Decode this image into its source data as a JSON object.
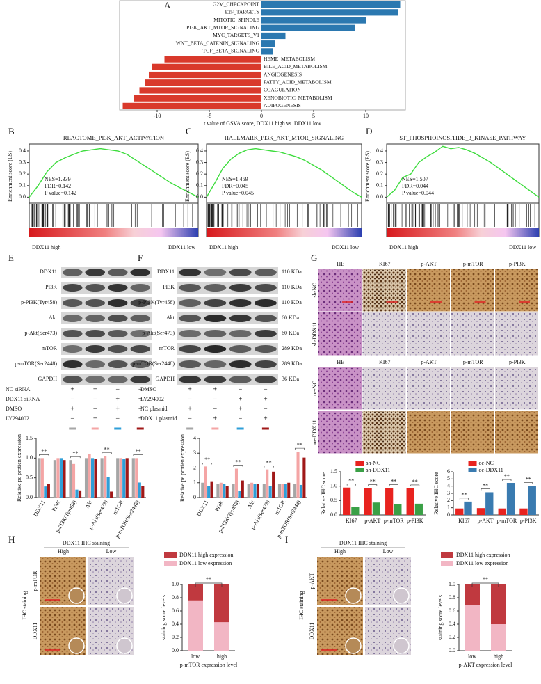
{
  "A": {
    "label": "A",
    "type": "bar",
    "orientation": "horizontal",
    "categories": [
      "G2M_CHECKPOINT",
      "E2F_TARGETS",
      "MITOTIC_SPINDLE",
      "PI3K_AKT_MTOR_SIGNALING",
      "MYC_TARGETS_V1",
      "WNT_BETA_CATENIN_SIGNALING",
      "TGF_BETA_SIGNALING",
      "HEME_METABOLISM",
      "BILE_ACID_METABOLISM",
      "ANGIOGENESIS",
      "FATTY_ACID_METABOLISM",
      "COAGULATION",
      "XENOBIOTIC_METABOLISM",
      "ADIPOGENESIS"
    ],
    "values": [
      13.3,
      13.1,
      10.0,
      9.0,
      2.3,
      1.3,
      1.1,
      -9.3,
      -10.5,
      -10.8,
      -11.2,
      -11.7,
      -12.2,
      -13.3
    ],
    "colors": {
      "positive": "#2b78b0",
      "negative": "#d9392b"
    },
    "xlabel": "t value of GSVA score, DDX11 high vs. DDX11 low",
    "xlim": [
      -13.6,
      13.8
    ],
    "xticks": [
      -10,
      -5,
      0,
      5,
      10
    ]
  },
  "B": {
    "label": "B",
    "type": "line",
    "title": "REACTOME_PI3K_AKT_ACTIVATION",
    "ylabel": "Enrichment score (ES)",
    "stats": [
      "NES=1.339",
      "FDR=0.142",
      "P value=0.142"
    ],
    "color": "#3ddc3d",
    "values": [
      0,
      0.1,
      0.22,
      0.3,
      0.34,
      0.37,
      0.4,
      0.41,
      0.42,
      0.41,
      0.4,
      0.37,
      0.32,
      0.27,
      0.22,
      0.17,
      0.12,
      0.08,
      0.04,
      0
    ],
    "ylim": [
      -0.04,
      0.46
    ],
    "yticks": [
      {
        "value": 0,
        "label": "0.0"
      },
      0.1,
      0.2,
      0.3,
      0.4
    ],
    "high_label": "DDX11 high",
    "low_label": "DDX11 low"
  },
  "C": {
    "label": "C",
    "type": "line",
    "title": "HALLMARK_PI3K_AKT_MTOR_SIGNALING",
    "ylabel": "Enrichment score (ES)",
    "stats": [
      "NES=1.459",
      "FDR=0.045",
      "P value=0.045"
    ],
    "color": "#3ddc3d",
    "values": [
      0,
      0.12,
      0.25,
      0.33,
      0.38,
      0.41,
      0.42,
      0.41,
      0.4,
      0.39,
      0.37,
      0.35,
      0.32,
      0.28,
      0.24,
      0.19,
      0.14,
      0.09,
      0.04,
      0
    ],
    "ylim": [
      -0.04,
      0.46
    ],
    "yticks": [
      {
        "value": 0,
        "label": "0.0"
      },
      0.1,
      0.2,
      0.3,
      0.4
    ],
    "high_label": "DDX11 high",
    "low_label": "DDX11 low"
  },
  "D": {
    "label": "D",
    "type": "line",
    "title": "ST_PHOSPHOINOSITIDE_3_KINASE_PATHWAY",
    "ylabel": "Enrichment score (ES)",
    "stats": [
      "NES=1.507",
      "FDR=0.044",
      "P value=0.044"
    ],
    "color": "#3ddc3d",
    "values": [
      0,
      0.06,
      0.17,
      0.2,
      0.3,
      0.35,
      0.39,
      0.44,
      0.42,
      0.43,
      0.41,
      0.38,
      0.34,
      0.3,
      0.25,
      0.2,
      0.15,
      0.1,
      0.05,
      0
    ],
    "ylim": [
      -0.04,
      0.46
    ],
    "yticks": [
      {
        "value": 0,
        "label": "0.0"
      },
      0.1,
      0.2,
      0.3,
      0.4
    ],
    "high_label": "DDX11 high",
    "low_label": "DDX11 low"
  },
  "E": {
    "label": "E",
    "blot": {
      "proteins": [
        "DDX11",
        "PI3K",
        "p-PI3K(Tyr458)",
        "Akt",
        "p-Akt(Ser473)",
        "mTOR",
        "p-mTOR(Ser2448)",
        "GAPDH"
      ],
      "treatments": [
        {
          "name": "NC siRNA",
          "signs": [
            "+",
            "+",
            "−",
            "−"
          ]
        },
        {
          "name": "DDX11 siRNA",
          "signs": [
            "−",
            "−",
            "+",
            "+"
          ]
        },
        {
          "name": "DMSO",
          "signs": [
            "+",
            "−",
            "+",
            "−"
          ]
        },
        {
          "name": "LY294002",
          "signs": [
            "−",
            "+",
            "−",
            "+"
          ]
        }
      ]
    },
    "chart": {
      "type": "bar",
      "ylabel": "Relative pe protien expression",
      "categories": [
        "DDX11",
        "PI3K",
        "p-PI3K(Tyr458)",
        "Akt",
        "p-Akt(Ser473)",
        "mTOR",
        "p-mTOR(Ser2448)"
      ],
      "series": [
        {
          "color": "#a6a6a6",
          "values": [
            1.0,
            0.95,
            0.95,
            1.0,
            1.0,
            1.0,
            1.0
          ]
        },
        {
          "color": "#f4a5a5",
          "values": [
            1.0,
            1.0,
            0.85,
            1.1,
            1.05,
            1.0,
            1.0
          ]
        },
        {
          "color": "#2f9fd8",
          "values": [
            0.28,
            1.0,
            0.2,
            1.0,
            0.52,
            0.97,
            0.38
          ]
        },
        {
          "color": "#a01818",
          "values": [
            0.35,
            0.95,
            0.18,
            0.98,
            0.15,
            1.0,
            0.3
          ]
        }
      ],
      "ylim": [
        0,
        1.5
      ],
      "yticks": [
        {
          "value": 0,
          "label": "0.0"
        },
        0.5,
        {
          "value": 1,
          "label": "1.0"
        },
        1.5
      ],
      "annotations": [
        {
          "text": "**",
          "x": "DDX11"
        },
        {
          "text": "**",
          "x": "p-PI3K(Tyr458)"
        },
        {
          "text": "**",
          "x": "p-Akt(Ser473)"
        },
        {
          "text": "**",
          "x": "p-mTOR(Ser2448)"
        }
      ]
    }
  },
  "F": {
    "label": "F",
    "blot": {
      "proteins": [
        "DDX11",
        "PI3K",
        "p-PI3K(Tyr458)",
        "Akt",
        "p-Akt(Ser473)",
        "mTOR",
        "p-mTOR(Ser2448)",
        "GAPDH"
      ],
      "sizes": [
        "110 KDa",
        "110 KDa",
        "110 KDa",
        "60 KDa",
        "60 KDa",
        "289 KDa",
        "289 KDa",
        "36 KDa"
      ],
      "treatments": [
        {
          "name": "DMSO",
          "signs": [
            "+",
            "+",
            "−",
            "−"
          ]
        },
        {
          "name": "LY294002",
          "signs": [
            "−",
            "−",
            "+",
            "+"
          ]
        },
        {
          "name": "NC plasmid",
          "signs": [
            "+",
            "−",
            "+",
            "−"
          ]
        },
        {
          "name": "DDX11 plasmid",
          "signs": [
            "−",
            "+",
            "−",
            "+"
          ]
        }
      ]
    },
    "chart": {
      "type": "bar",
      "ylabel": "Relative pe protien expression",
      "categories": [
        "DDX11",
        "PI3K",
        "p-PI3K(Tyr458)",
        "Akt",
        "p-Akt(Ser473)",
        "mTOR",
        "p-mTOR(Ser2448)"
      ],
      "series": [
        {
          "color": "#a6a6a6",
          "values": [
            1.0,
            0.9,
            0.9,
            0.9,
            0.9,
            0.9,
            0.9
          ]
        },
        {
          "color": "#f4a5a5",
          "values": [
            2.1,
            1.0,
            1.95,
            1.0,
            1.9,
            0.9,
            3.1
          ]
        },
        {
          "color": "#2f9fd8",
          "values": [
            0.8,
            0.9,
            0.45,
            0.9,
            0.8,
            0.9,
            0.85
          ]
        },
        {
          "color": "#a01818",
          "values": [
            1.1,
            0.8,
            1.15,
            0.9,
            1.75,
            1.0,
            2.7
          ]
        }
      ],
      "ylim": [
        0,
        4
      ],
      "yticks": [
        0,
        1,
        2,
        3,
        4
      ],
      "annotations": [
        {
          "text": "**",
          "x": "DDX11"
        },
        {
          "text": "**",
          "x": "p-PI3K(Tyr458)"
        },
        {
          "text": "**",
          "x": "p-Akt(Ser473)"
        },
        {
          "text": "**",
          "x": "p-mTOR(Ser2448)"
        }
      ]
    }
  },
  "G": {
    "label": "G",
    "ihc": {
      "columns": [
        "HE",
        "KI67",
        "p-AKT",
        "p-mTOR",
        "p-PI3K"
      ],
      "groups": [
        {
          "rows": [
            "sh-NC",
            "sh-DDX11"
          ]
        },
        {
          "rows": [
            "oe-NC",
            "oe-DDX11"
          ]
        }
      ]
    },
    "charts": [
      {
        "type": "bar",
        "ylabel": "Relative IHC score",
        "categories": [
          "KI67",
          "p-AKT",
          "p-mTOR",
          "p-PI3K"
        ],
        "series": [
          {
            "name": "sh-NC",
            "color": "#e8231f",
            "values": [
              0.95,
              0.93,
              0.93,
              0.92
            ]
          },
          {
            "name": "sh-DDX11",
            "color": "#3aa046",
            "values": [
              0.28,
              0.43,
              0.38,
              0.39
            ]
          }
        ],
        "ylim": [
          0,
          1.5
        ],
        "yticks": [
          {
            "value": 0,
            "label": "0.0"
          },
          0.5,
          {
            "value": 1,
            "label": "1.0"
          },
          1.5
        ],
        "annotations": [
          {
            "text": "**",
            "x": "KI67"
          },
          {
            "text": "**",
            "x": "p-AKT"
          },
          {
            "text": "**",
            "x": "p-mTOR"
          },
          {
            "text": "**",
            "x": "p-PI3K"
          }
        ]
      },
      {
        "type": "bar",
        "ylabel": "Relative IHC score",
        "categories": [
          "KI67",
          "p-AKT",
          "p-mTOR",
          "p-PI3K"
        ],
        "series": [
          {
            "name": "oe-NC",
            "color": "#e8231f",
            "values": [
              0.9,
              0.95,
              0.9,
              0.9
            ]
          },
          {
            "name": "oe-DDX11",
            "color": "#3a7bb0",
            "values": [
              1.85,
              3.15,
              4.45,
              4.0
            ]
          }
        ],
        "ylim": [
          0,
          6
        ],
        "yticks": [
          0,
          1,
          2,
          3,
          4,
          5,
          6
        ],
        "annotations": [
          {
            "text": "**",
            "x": "KI67"
          },
          {
            "text": "**",
            "x": "p-AKT"
          },
          {
            "text": "**",
            "x": "p-mTOR"
          },
          {
            "text": "**",
            "x": "p-PI3K"
          }
        ]
      }
    ]
  },
  "H": {
    "label": "H",
    "ihc": {
      "title": "DDX11 IHC staining",
      "columns": [
        "High",
        "Low"
      ],
      "rows": [
        "p-mTOR",
        "DDX11"
      ],
      "side_label": "IHC staining"
    },
    "chart": {
      "type": "stacked_bar",
      "categories": [
        "low",
        "high"
      ],
      "series": [
        {
          "name": "DDX11 low expression",
          "color": "#f2b6c4",
          "values": [
            0.76,
            0.43
          ]
        },
        {
          "name": "DDX11 high expression",
          "color": "#c0393f",
          "values": [
            0.24,
            0.57
          ]
        }
      ],
      "ylabel": "staining score levels",
      "xlabel": "p-mTOR expression level",
      "ylim": [
        0,
        1
      ],
      "yticks": [
        {
          "value": 0,
          "label": "0.0"
        },
        0.2,
        0.4,
        0.6,
        0.8,
        {
          "value": 1,
          "label": "1.0"
        }
      ],
      "annotation": "**"
    }
  },
  "I": {
    "label": "I",
    "ihc": {
      "title": "DDX11 IHC staining",
      "columns": [
        "High",
        "Low"
      ],
      "rows": [
        "p-AKT",
        "DDX11"
      ],
      "side_label": "IHC staining"
    },
    "chart": {
      "type": "stacked_bar",
      "categories": [
        "low",
        "high"
      ],
      "series": [
        {
          "name": "DDX11 low expression",
          "color": "#f2b6c4",
          "values": [
            0.69,
            0.4
          ]
        },
        {
          "name": "DDX11 high expression",
          "color": "#c0393f",
          "values": [
            0.31,
            0.6
          ]
        }
      ],
      "ylabel": "staining score levels",
      "xlabel": "p-AKT expression level",
      "ylim": [
        0,
        1
      ],
      "yticks": [
        {
          "value": 0,
          "label": "0.0"
        },
        0.2,
        0.4,
        0.6,
        0.8,
        {
          "value": 1,
          "label": "1.0"
        }
      ],
      "annotation": "**"
    }
  }
}
